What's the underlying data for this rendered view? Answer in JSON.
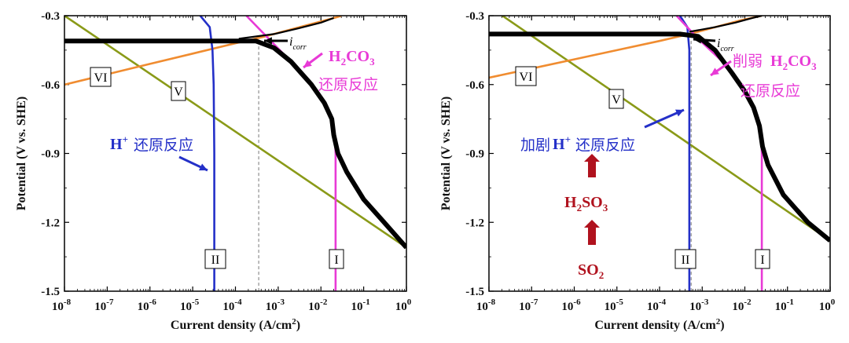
{
  "chart_data": [
    {
      "type": "line",
      "xlabel": "Current density (A/cm2)",
      "ylabel": "Potential (V vs. SHE)",
      "xscale": "log",
      "xlim": [
        1e-08,
        1
      ],
      "ylim": [
        -1.5,
        -0.3
      ],
      "x_ticks": [
        "10-8",
        "10-7",
        "10-6",
        "10-5",
        "10-4",
        "10-3",
        "10-2",
        "10-1",
        "100"
      ],
      "y_ticks": [
        "-0.3",
        "-0.6",
        "-0.9",
        "-1.2",
        "-1.5"
      ],
      "series": [
        {
          "name": "I",
          "color": "#e83ad6",
          "points": [
            [
              0.00018,
              -0.3
            ],
            [
              0.0006,
              -0.4
            ],
            [
              0.002,
              -0.5
            ],
            [
              0.006,
              -0.6
            ],
            [
              0.012,
              -0.68
            ],
            [
              0.018,
              -0.75
            ],
            [
              0.021,
              -0.82
            ],
            [
              0.022,
              -0.9
            ],
            [
              0.022,
              -1.2
            ],
            [
              0.022,
              -1.5
            ]
          ]
        },
        {
          "name": "II",
          "color": "#2430c8",
          "points": [
            [
              1.5e-05,
              -0.3
            ],
            [
              2.5e-05,
              -0.35
            ],
            [
              2.9e-05,
              -0.45
            ],
            [
              3.1e-05,
              -0.6
            ],
            [
              3.2e-05,
              -0.9
            ],
            [
              3.2e-05,
              -1.5
            ]
          ]
        },
        {
          "name": "V",
          "color": "#8a9a18",
          "points": [
            [
              1e-08,
              -0.3
            ],
            [
              1,
              -1.31
            ]
          ]
        },
        {
          "name": "VI",
          "color": "#f08c30",
          "points": [
            [
              1e-08,
              -0.6
            ],
            [
              1e-07,
              -0.555
            ],
            [
              1e-06,
              -0.51
            ],
            [
              1e-05,
              -0.465
            ],
            [
              0.0001,
              -0.42
            ],
            [
              0.0005,
              -0.39
            ],
            [
              0.002,
              -0.36
            ],
            [
              0.008,
              -0.33
            ],
            [
              0.025,
              -0.305
            ],
            [
              0.03,
              -0.3
            ]
          ]
        },
        {
          "name": "",
          "color": "#000000",
          "points": [
            [
              1e-08,
              -0.41
            ],
            [
              0.0001,
              -0.41
            ],
            [
              0.0003,
              -0.41
            ],
            [
              0.0008,
              -0.44
            ],
            [
              0.002,
              -0.5
            ],
            [
              0.006,
              -0.6
            ],
            [
              0.012,
              -0.68
            ],
            [
              0.018,
              -0.75
            ],
            [
              0.02,
              -0.82
            ],
            [
              0.025,
              -0.9
            ],
            [
              0.04,
              -0.98
            ],
            [
              0.1,
              -1.1
            ],
            [
              0.3,
              -1.2
            ],
            [
              1,
              -1.31
            ]
          ]
        },
        {
          "name": "",
          "color": "#000000",
          "points": [
            [
              0.00012,
              -0.4
            ],
            [
              0.0008,
              -0.38
            ],
            [
              0.003,
              -0.355
            ],
            [
              0.01,
              -0.33
            ],
            [
              0.02,
              -0.31
            ]
          ]
        }
      ],
      "icorr": 0.00035,
      "annotations": {
        "icorr_i": "i",
        "icorr_sub": "corr",
        "h2co3_main": "H",
        "h2co3_sub1": "2",
        "h2co3_mid": "CO",
        "h2co3_sub2": "3",
        "h2co3_cn": "还原反应",
        "h_main": "H",
        "h_sup": "+",
        "h_cn": "还原反应"
      },
      "curve_labels": [
        "VI",
        "V",
        "II",
        "I"
      ]
    },
    {
      "type": "line",
      "xlabel": "Current density (A/cm2)",
      "ylabel": "Potential (V vs. SHE)",
      "xscale": "log",
      "xlim": [
        1e-08,
        1
      ],
      "ylim": [
        -1.5,
        -0.3
      ],
      "x_ticks": [
        "10-8",
        "10-7",
        "10-6",
        "10-5",
        "10-4",
        "10-3",
        "10-2",
        "10-1",
        "100"
      ],
      "y_ticks": [
        "-0.3",
        "-0.6",
        "-0.9",
        "-1.2",
        "-1.5"
      ],
      "series": [
        {
          "name": "I",
          "color": "#e83ad6",
          "points": [
            [
              0.00025,
              -0.3
            ],
            [
              0.0008,
              -0.4
            ],
            [
              0.003,
              -0.5
            ],
            [
              0.008,
              -0.6
            ],
            [
              0.014,
              -0.68
            ],
            [
              0.02,
              -0.75
            ],
            [
              0.024,
              -0.82
            ],
            [
              0.025,
              -0.9
            ],
            [
              0.025,
              -1.2
            ],
            [
              0.025,
              -1.5
            ]
          ]
        },
        {
          "name": "II",
          "color": "#2430c8",
          "points": [
            [
              0.0003,
              -0.3
            ],
            [
              0.00045,
              -0.35
            ],
            [
              0.0005,
              -0.45
            ],
            [
              0.0005,
              -0.6
            ],
            [
              0.0005,
              -1.5
            ]
          ]
        },
        {
          "name": "V",
          "color": "#8a9a18",
          "points": [
            [
              1e-08,
              -0.26
            ],
            [
              1,
              -1.28
            ]
          ]
        },
        {
          "name": "VI",
          "color": "#f08c30",
          "points": [
            [
              1e-08,
              -0.57
            ],
            [
              1e-07,
              -0.53
            ],
            [
              1e-06,
              -0.49
            ],
            [
              1e-05,
              -0.45
            ],
            [
              0.0001,
              -0.41
            ],
            [
              0.0005,
              -0.38
            ],
            [
              0.002,
              -0.35
            ],
            [
              0.008,
              -0.32
            ],
            [
              0.025,
              -0.3
            ]
          ]
        },
        {
          "name": "",
          "color": "#000000",
          "points": [
            [
              1e-08,
              -0.38
            ],
            [
              0.0003,
              -0.38
            ],
            [
              0.0008,
              -0.39
            ],
            [
              0.002,
              -0.45
            ],
            [
              0.005,
              -0.55
            ],
            [
              0.01,
              -0.63
            ],
            [
              0.016,
              -0.7
            ],
            [
              0.022,
              -0.78
            ],
            [
              0.026,
              -0.87
            ],
            [
              0.035,
              -0.95
            ],
            [
              0.08,
              -1.08
            ],
            [
              0.3,
              -1.2
            ],
            [
              1,
              -1.28
            ]
          ]
        },
        {
          "name": "",
          "color": "#000000",
          "points": [
            [
              0.0005,
              -0.37
            ],
            [
              0.002,
              -0.35
            ],
            [
              0.006,
              -0.33
            ],
            [
              0.015,
              -0.31
            ],
            [
              0.025,
              -0.3
            ]
          ]
        }
      ],
      "icorr": 0.00055,
      "annotations": {
        "icorr_i": "i",
        "icorr_sub": "corr",
        "h2co3_pre": "削弱",
        "h2co3_main": "H",
        "h2co3_sub1": "2",
        "h2co3_mid": "CO",
        "h2co3_sub2": "3",
        "h2co3_cn": "还原反应",
        "h_pre": "加剧",
        "h_main": "H",
        "h_sup": "+",
        "h_cn": "还原反应",
        "h2so3_main": "H",
        "h2so3_sub1": "2",
        "h2so3_mid": "SO",
        "h2so3_sub2": "3",
        "so2_main": "SO",
        "so2_sub": "2"
      },
      "curve_labels": [
        "VI",
        "V",
        "II",
        "I"
      ]
    }
  ]
}
